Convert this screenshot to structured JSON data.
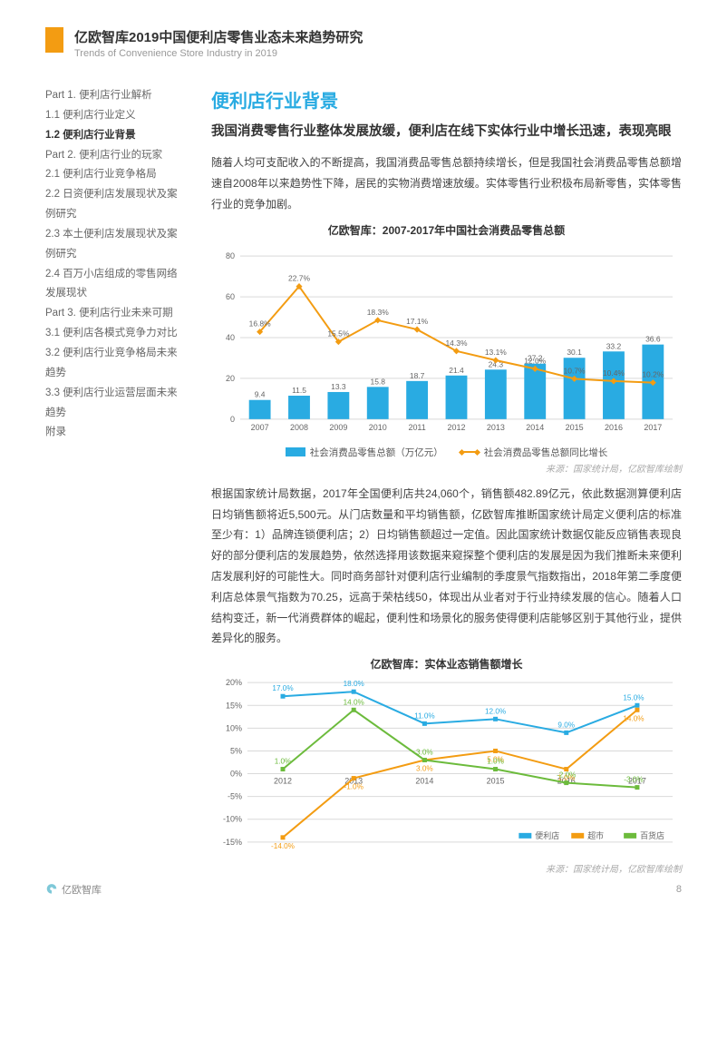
{
  "header": {
    "title_cn": "亿欧智库2019中国便利店零售业态未来趋势研究",
    "title_en": "Trends of Convenience Store Industry in 2019"
  },
  "toc": {
    "items": [
      {
        "label": "Part 1. 便利店行业解析",
        "active": false
      },
      {
        "label": "1.1 便利店行业定义",
        "active": false
      },
      {
        "label": "1.2 便利店行业背景",
        "active": true
      },
      {
        "label": "Part 2. 便利店行业的玩家",
        "active": false
      },
      {
        "label": "2.1 便利店行业竞争格局",
        "active": false
      },
      {
        "label": "2.2 日资便利店发展现状及案例研究",
        "active": false
      },
      {
        "label": "2.3 本土便利店发展现状及案例研究",
        "active": false
      },
      {
        "label": "2.4 百万小店组成的零售网络发展现状",
        "active": false
      },
      {
        "label": "Part 3. 便利店行业未来可期",
        "active": false
      },
      {
        "label": "3.1 便利店各模式竞争力对比",
        "active": false
      },
      {
        "label": "3.2 便利店行业竞争格局未来趋势",
        "active": false
      },
      {
        "label": "3.3 便利店行业运营层面未来趋势",
        "active": false
      },
      {
        "label": "附录",
        "active": false
      }
    ]
  },
  "main": {
    "section_title": "便利店行业背景",
    "sub_title": "我国消费零售行业整体发展放缓，便利店在线下实体行业中增长迅速，表现亮眼",
    "para1": "随着人均可支配收入的不断提高，我国消费品零售总额持续增长，但是我国社会消费品零售总额增速自2008年以来趋势性下降，居民的实物消费增速放缓。实体零售行业积极布局新零售，实体零售行业的竞争加剧。",
    "para2": "根据国家统计局数据，2017年全国便利店共24,060个，销售额482.89亿元，依此数据测算便利店日均销售额将近5,500元。从门店数量和平均销售额，亿欧智库推断国家统计局定义便利店的标准至少有：1）品牌连锁便利店；2）日均销售额超过一定值。因此国家统计数据仅能反应销售表现良好的部分便利店的发展趋势，依然选择用该数据来窥探整个便利店的发展是因为我们推断未来便利店发展利好的可能性大。同时商务部针对便利店行业编制的季度景气指数指出，2018年第二季度便利店总体景气指数为70.25，远高于荣枯线50，体现出从业者对于行业持续发展的信心。随着人口结构变迁，新一代消费群体的崛起，便利性和场景化的服务使得便利店能够区别于其他行业，提供差异化的服务。"
  },
  "chart1": {
    "title": "亿欧智库：2007-2017年中国社会消费品零售总额",
    "type": "bar+line",
    "years": [
      "2007",
      "2008",
      "2009",
      "2010",
      "2011",
      "2012",
      "2013",
      "2014",
      "2015",
      "2016",
      "2017"
    ],
    "bar_values": [
      9.4,
      11.5,
      13.3,
      15.8,
      18.7,
      21.4,
      24.3,
      27.2,
      30.1,
      33.2,
      36.6
    ],
    "line_values_pct": [
      16.8,
      22.7,
      15.5,
      18.3,
      17.1,
      14.3,
      13.1,
      12.0,
      10.7,
      10.4,
      10.2
    ],
    "bar_color": "#29abe2",
    "line_color": "#f39c12",
    "grid_color": "#d9d9d9",
    "axis_color": "#999999",
    "text_color": "#666666",
    "y_ticks": [
      0,
      20,
      40,
      60,
      80
    ],
    "legend_bar": "社会消费品零售总额（万亿元）",
    "legend_line": "社会消费品零售总额同比增长",
    "source": "来源：国家统计局，亿欧智库绘制"
  },
  "chart2": {
    "title": "亿欧智库：实体业态销售额增长",
    "type": "multi-line",
    "years": [
      "2012",
      "2013",
      "2014",
      "2015",
      "2016",
      "2017"
    ],
    "series": [
      {
        "name": "便利店",
        "color": "#29abe2",
        "values_pct": [
          17.0,
          18.0,
          11.0,
          12.0,
          9.0,
          15.0
        ]
      },
      {
        "name": "超市",
        "color": "#f39c12",
        "values_pct": [
          -14.0,
          -1.0,
          3.0,
          5.0,
          1.0,
          14.0
        ]
      },
      {
        "name": "百货店",
        "color": "#6cbb3c",
        "values_pct": [
          1.0,
          14.0,
          3.0,
          1.0,
          -2.0,
          -3.0
        ]
      }
    ],
    "y_ticks_pct": [
      -15,
      -10,
      -5,
      0,
      5,
      10,
      15,
      20
    ],
    "grid_color": "#d9d9d9",
    "axis_color": "#999999",
    "text_color": "#666666",
    "legend_cv": "便利店",
    "legend_sm": "超市",
    "legend_ds": "百货店",
    "source": "来源：国家统计局，亿欧智库绘制"
  },
  "footer": {
    "brand": "亿欧智库",
    "page_no": "8"
  }
}
